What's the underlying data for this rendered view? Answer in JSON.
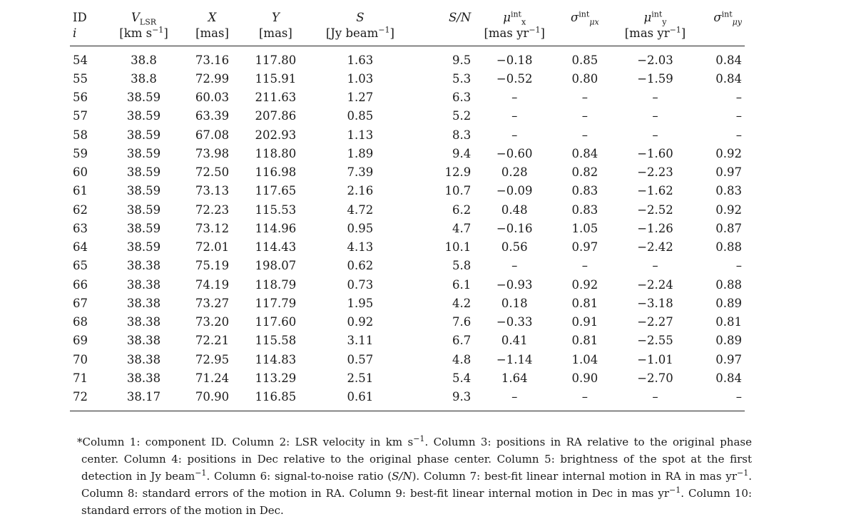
{
  "table": {
    "header": {
      "id": "ID",
      "id_sub": "i",
      "vlsr_main": "V",
      "vlsr_sub": "LSR",
      "vlsr_unit_pre": "[km s",
      "vlsr_unit_exp": "−1",
      "vlsr_unit_post": "]",
      "x": "X",
      "x_unit": "[mas]",
      "y": "Y",
      "y_unit": "[mas]",
      "s": "S",
      "s_unit_pre": "[Jy beam",
      "s_unit_exp": "−1",
      "s_unit_post": "]",
      "sn": "S/N",
      "mux_sym": "μ",
      "mux_sup": "int",
      "mux_sub": "x",
      "mux_unit_pre": "[mas yr",
      "mux_unit_exp": "−1",
      "mux_unit_post": "]",
      "sigx_sym": "σ",
      "sigx_sup": "int",
      "sigx_sub": "μx",
      "muy_sym": "μ",
      "muy_sup": "int",
      "muy_sub": "y",
      "muy_unit_pre": "[mas yr",
      "muy_unit_exp": "−1",
      "muy_unit_post": "]",
      "sigy_sym": "σ",
      "sigy_sup": "int",
      "sigy_sub": "μy"
    },
    "rows": [
      [
        "54",
        "38.8",
        "73.16",
        "117.80",
        "1.63",
        "9.5",
        "−0.18",
        "0.85",
        "−2.03",
        "0.84"
      ],
      [
        "55",
        "38.8",
        "72.99",
        "115.91",
        "1.03",
        "5.3",
        "−0.52",
        "0.80",
        "−1.59",
        "0.84"
      ],
      [
        "56",
        "38.59",
        "60.03",
        "211.63",
        "1.27",
        "6.3",
        "–",
        "–",
        "–",
        "–"
      ],
      [
        "57",
        "38.59",
        "63.39",
        "207.86",
        "0.85",
        "5.2",
        "–",
        "–",
        "–",
        "–"
      ],
      [
        "58",
        "38.59",
        "67.08",
        "202.93",
        "1.13",
        "8.3",
        "–",
        "–",
        "–",
        "–"
      ],
      [
        "59",
        "38.59",
        "73.98",
        "118.80",
        "1.89",
        "9.4",
        "−0.60",
        "0.84",
        "−1.60",
        "0.92"
      ],
      [
        "60",
        "38.59",
        "72.50",
        "116.98",
        "7.39",
        "12.9",
        "0.28",
        "0.82",
        "−2.23",
        "0.97"
      ],
      [
        "61",
        "38.59",
        "73.13",
        "117.65",
        "2.16",
        "10.7",
        "−0.09",
        "0.83",
        "−1.62",
        "0.83"
      ],
      [
        "62",
        "38.59",
        "72.23",
        "115.53",
        "4.72",
        "6.2",
        "0.48",
        "0.83",
        "−2.52",
        "0.92"
      ],
      [
        "63",
        "38.59",
        "73.12",
        "114.96",
        "0.95",
        "4.7",
        "−0.16",
        "1.05",
        "−1.26",
        "0.87"
      ],
      [
        "64",
        "38.59",
        "72.01",
        "114.43",
        "4.13",
        "10.1",
        "0.56",
        "0.97",
        "−2.42",
        "0.88"
      ],
      [
        "65",
        "38.38",
        "75.19",
        "198.07",
        "0.62",
        "5.8",
        "–",
        "–",
        "–",
        "–"
      ],
      [
        "66",
        "38.38",
        "74.19",
        "118.79",
        "0.73",
        "6.1",
        "−0.93",
        "0.92",
        "−2.24",
        "0.88"
      ],
      [
        "67",
        "38.38",
        "73.27",
        "117.79",
        "1.95",
        "4.2",
        "0.18",
        "0.81",
        "−3.18",
        "0.89"
      ],
      [
        "68",
        "38.38",
        "73.20",
        "117.60",
        "0.92",
        "7.6",
        "−0.33",
        "0.91",
        "−2.27",
        "0.81"
      ],
      [
        "69",
        "38.38",
        "72.21",
        "115.58",
        "3.11",
        "6.7",
        "0.41",
        "0.81",
        "−2.55",
        "0.89"
      ],
      [
        "70",
        "38.38",
        "72.95",
        "114.83",
        "0.57",
        "4.8",
        "−1.14",
        "1.04",
        "−1.01",
        "0.97"
      ],
      [
        "71",
        "38.38",
        "71.24",
        "113.29",
        "2.51",
        "5.4",
        "1.64",
        "0.90",
        "−2.70",
        "0.84"
      ],
      [
        "72",
        "38.17",
        "70.90",
        "116.85",
        "0.61",
        "9.3",
        "–",
        "–",
        "–",
        "–"
      ]
    ]
  },
  "footnote": {
    "p1": "*Column 1: component ID. Column 2: LSR velocity in km s",
    "p1_exp": "−1",
    "p2": ". Column 3: positions in RA relative to the original phase center. Column 4: positions in Dec relative to the original phase center. Column 5: brightness of the spot at the first detection in Jy beam",
    "p2_exp": "−1",
    "p3": ". Column 6: signal-to-noise ratio (",
    "p3_it": "S/N",
    "p4": "). Column 7: best-fit linear internal motion in RA in mas yr",
    "p4_exp": "−1",
    "p5": ". Column 8: standard errors of the motion in RA. Column 9: best-fit linear internal motion in Dec in mas yr",
    "p5_exp": "−1",
    "p6": ". Column 10: standard errors of the motion in Dec."
  }
}
